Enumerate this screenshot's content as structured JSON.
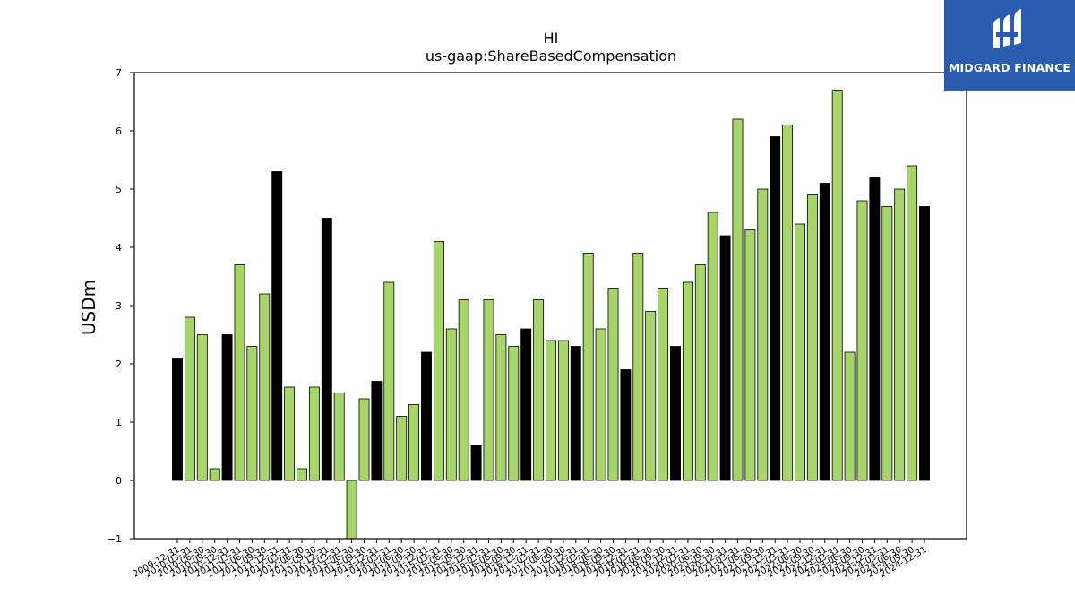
{
  "chart_data": {
    "type": "bar",
    "title": "HI",
    "subtitle": "us-gaap:ShareBasedCompensation",
    "xlabel": "",
    "ylabel": "USDm",
    "ylim": [
      -1,
      7
    ],
    "yticks": [
      "−1",
      "0",
      "1",
      "2",
      "3",
      "4",
      "5",
      "6",
      "7"
    ],
    "grid": false,
    "colors": {
      "annual": "#000000",
      "quarterly": "#a8d56b",
      "edge": "#000000"
    },
    "categories": [
      "2009-12-31",
      "2010-03-31",
      "2010-06-30",
      "2010-09-30",
      "2010-12-31",
      "2011-03-31",
      "2011-06-30",
      "2011-09-30",
      "2011-12-31",
      "2012-03-31",
      "2012-06-30",
      "2012-09-30",
      "2012-12-31",
      "2013-03-31",
      "2013-06-30",
      "2013-09-30",
      "2013-12-31",
      "2014-03-31",
      "2014-06-30",
      "2014-09-30",
      "2014-12-31",
      "2015-03-31",
      "2015-06-30",
      "2015-09-30",
      "2015-12-31",
      "2016-03-31",
      "2016-06-30",
      "2016-09-30",
      "2016-12-31",
      "2017-03-31",
      "2017-06-30",
      "2017-09-30",
      "2017-12-31",
      "2018-03-31",
      "2018-06-30",
      "2018-09-30",
      "2018-12-31",
      "2019-03-31",
      "2019-06-30",
      "2019-09-30",
      "2019-12-31",
      "2020-03-31",
      "2020-06-30",
      "2020-09-30",
      "2020-12-31",
      "2021-03-31",
      "2021-06-30",
      "2021-09-30",
      "2021-12-31",
      "2022-03-31",
      "2022-06-30",
      "2022-09-30",
      "2022-12-31",
      "2023-03-31",
      "2023-06-30",
      "2023-09-30",
      "2023-12-31",
      "2024-03-31",
      "2024-06-30",
      "2024-09-30",
      "2024-12-31"
    ],
    "values": [
      2.1,
      2.8,
      2.5,
      0.2,
      2.5,
      3.7,
      2.3,
      3.2,
      5.3,
      1.6,
      0.2,
      1.6,
      4.5,
      1.5,
      -1.0,
      1.4,
      1.7,
      3.4,
      1.1,
      1.3,
      2.2,
      4.1,
      2.6,
      3.1,
      0.6,
      3.1,
      2.5,
      2.3,
      2.6,
      3.1,
      2.4,
      2.4,
      2.3,
      3.9,
      2.6,
      3.3,
      1.9,
      3.9,
      2.9,
      3.3,
      2.3,
      3.4,
      3.7,
      4.6,
      4.2,
      6.2,
      4.3,
      5.0,
      5.9,
      6.1,
      4.4,
      4.9,
      5.1,
      6.7,
      2.2,
      4.8,
      5.2,
      4.7,
      5.0,
      5.4,
      4.7
    ],
    "annual": [
      true,
      false,
      false,
      false,
      true,
      false,
      false,
      false,
      true,
      false,
      false,
      false,
      true,
      false,
      false,
      false,
      true,
      false,
      false,
      false,
      true,
      false,
      false,
      false,
      true,
      false,
      false,
      false,
      true,
      false,
      false,
      false,
      true,
      false,
      false,
      false,
      true,
      false,
      false,
      false,
      true,
      false,
      false,
      false,
      true,
      false,
      false,
      false,
      true,
      false,
      false,
      false,
      true,
      false,
      false,
      false,
      true,
      false,
      false,
      false,
      true
    ]
  },
  "logo": {
    "text": "MIDGARD FINANCE",
    "color": "#2a5db0"
  }
}
